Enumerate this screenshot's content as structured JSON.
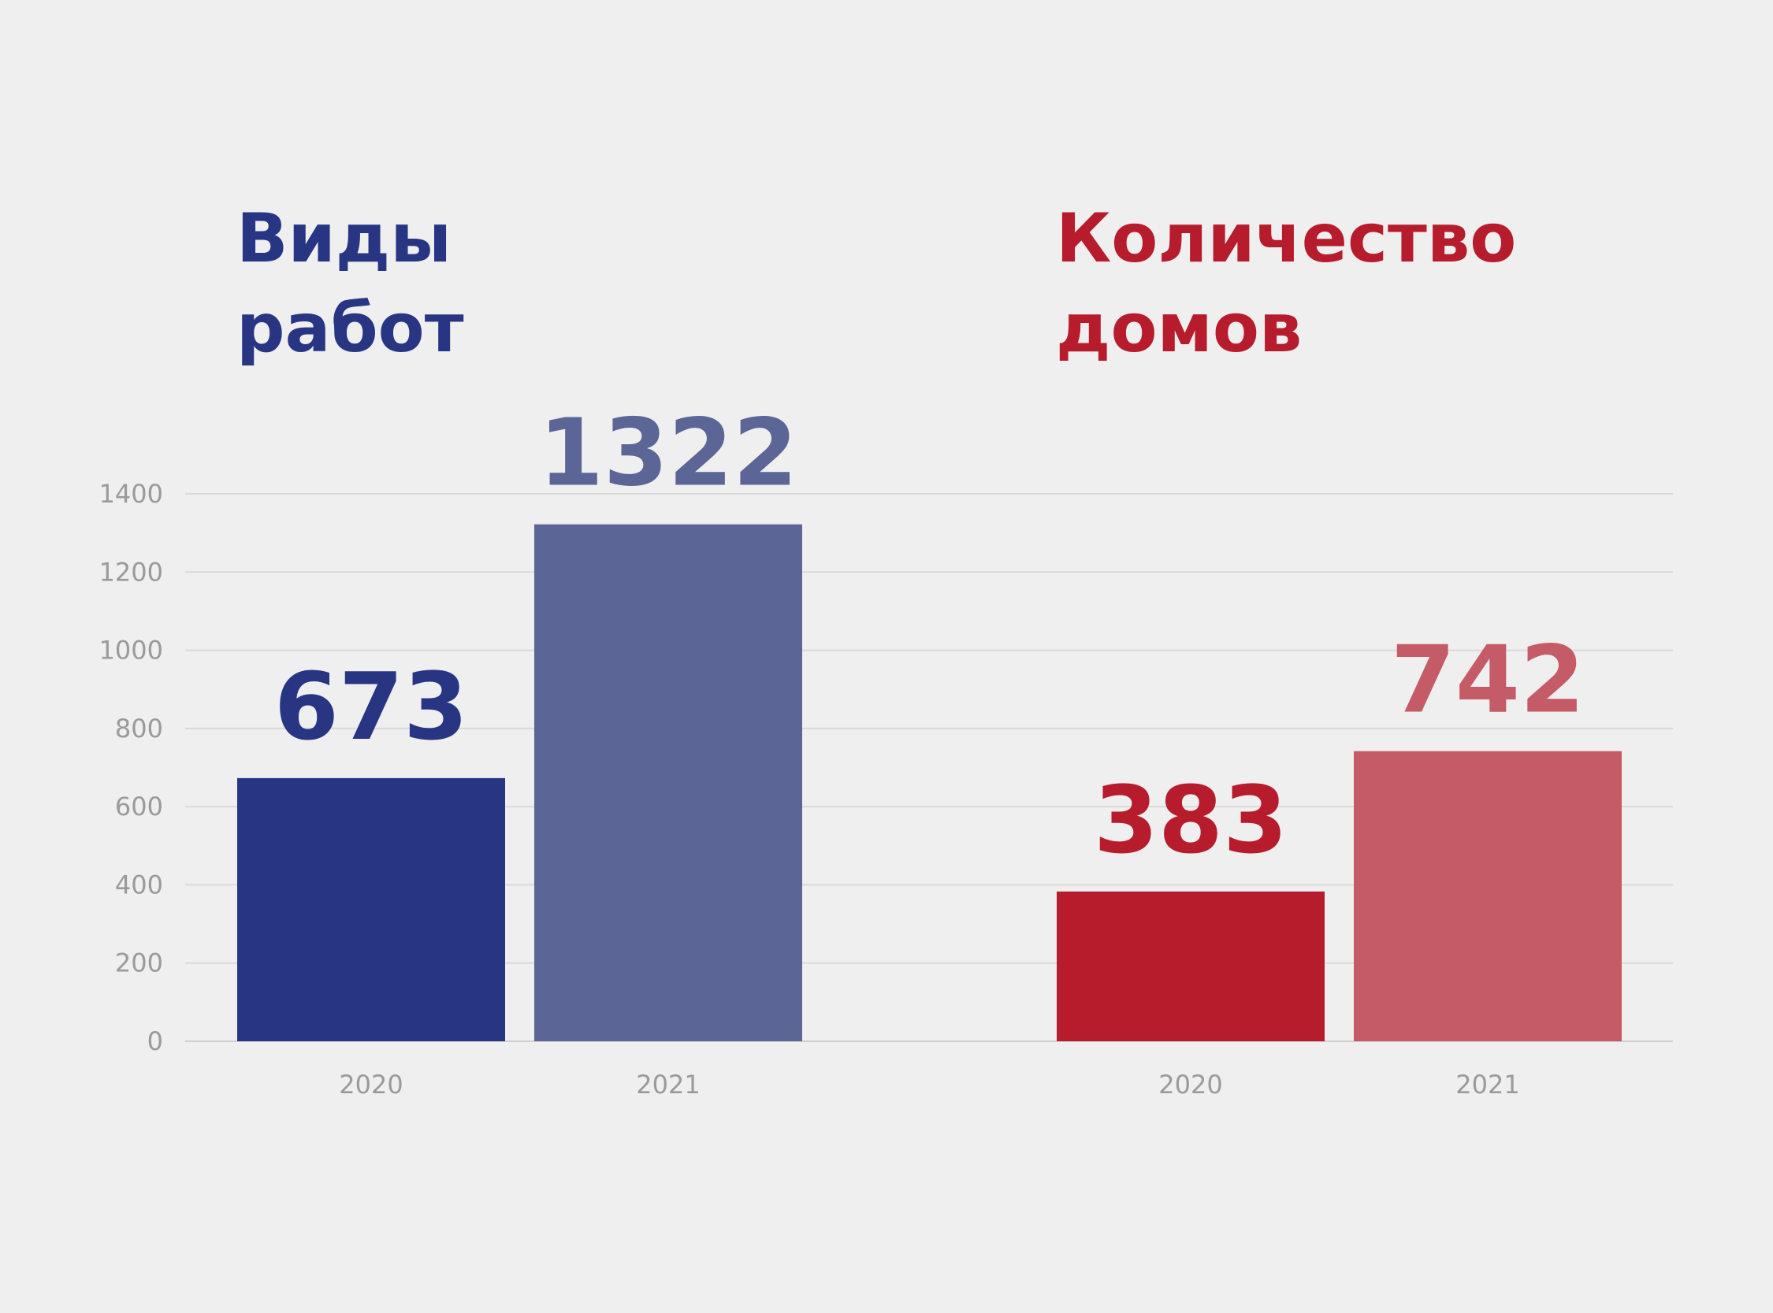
{
  "chart_data": [
    {
      "type": "bar",
      "title": "Виды\nработ",
      "categories": [
        "2020",
        "2021"
      ],
      "values": [
        673,
        1322
      ],
      "colors": [
        "#283583",
        "#5b6596"
      ],
      "ylim": [
        0,
        1400
      ],
      "yticks": [
        0,
        200,
        400,
        600,
        800,
        1000,
        1200,
        1400
      ],
      "grid": true
    },
    {
      "type": "bar",
      "title": "Количество\nдомов",
      "categories": [
        "2020",
        "2021"
      ],
      "values": [
        383,
        742
      ],
      "colors": [
        "#b71c2d",
        "#c45b66"
      ],
      "ylim": [
        0,
        1400
      ],
      "grid": true
    }
  ]
}
